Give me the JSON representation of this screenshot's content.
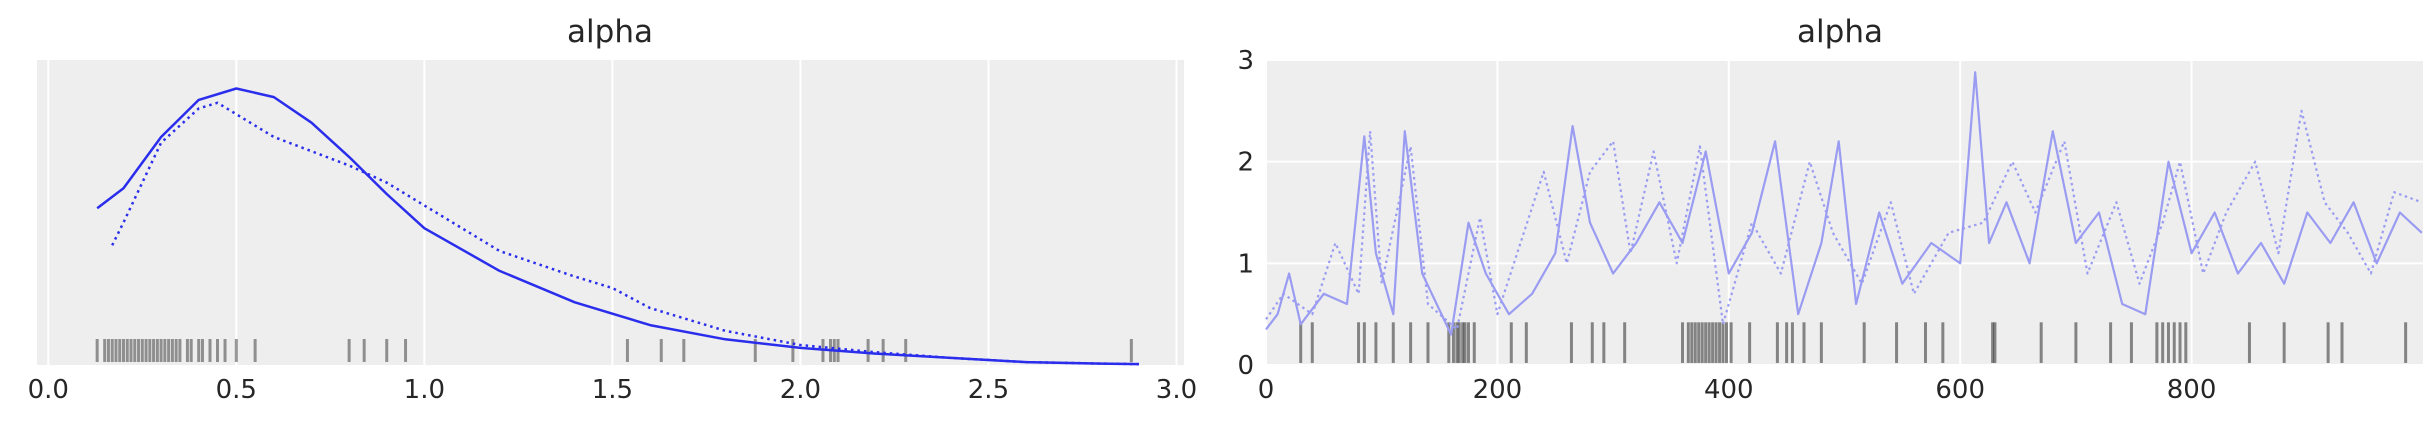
{
  "chart_data": [
    {
      "type": "line",
      "subtype": "kde",
      "title": "alpha",
      "xlabel": "",
      "ylabel": "",
      "xlim": [
        -0.03,
        3.02
      ],
      "xticks": [
        0.0,
        0.5,
        1.0,
        1.5,
        2.0,
        2.5,
        3.0
      ],
      "xtick_labels": [
        "0.0",
        "0.5",
        "1.0",
        "1.5",
        "2.0",
        "2.5",
        "3.0"
      ],
      "yticks_shown": false,
      "grid": true,
      "line_color": "#2a2eec",
      "series": [
        {
          "style": "solid",
          "x": [
            0.13,
            0.2,
            0.3,
            0.4,
            0.5,
            0.6,
            0.7,
            0.8,
            0.9,
            1.0,
            1.2,
            1.4,
            1.6,
            1.8,
            2.0,
            2.2,
            2.4,
            2.6,
            2.8,
            2.9
          ],
          "y": [
            0.55,
            0.62,
            0.8,
            0.93,
            0.97,
            0.94,
            0.85,
            0.73,
            0.6,
            0.48,
            0.33,
            0.22,
            0.14,
            0.09,
            0.06,
            0.04,
            0.025,
            0.01,
            0.005,
            0.003
          ]
        },
        {
          "style": "dotted",
          "x": [
            0.17,
            0.2,
            0.3,
            0.4,
            0.45,
            0.5,
            0.6,
            0.7,
            0.8,
            0.9,
            1.0,
            1.2,
            1.4,
            1.5,
            1.6,
            1.8,
            2.0,
            2.2,
            2.4,
            2.6,
            2.8,
            2.9
          ],
          "y": [
            0.42,
            0.5,
            0.78,
            0.9,
            0.92,
            0.88,
            0.8,
            0.75,
            0.7,
            0.64,
            0.56,
            0.4,
            0.31,
            0.27,
            0.2,
            0.12,
            0.07,
            0.045,
            0.025,
            0.01,
            0.005,
            0.003
          ]
        }
      ],
      "ylim": [
        0,
        1.07
      ],
      "rug": [
        0.13,
        0.15,
        0.16,
        0.17,
        0.18,
        0.19,
        0.2,
        0.21,
        0.22,
        0.23,
        0.24,
        0.25,
        0.26,
        0.27,
        0.28,
        0.29,
        0.3,
        0.31,
        0.32,
        0.33,
        0.34,
        0.35,
        0.37,
        0.38,
        0.4,
        0.41,
        0.43,
        0.45,
        0.47,
        0.5,
        0.55,
        0.8,
        0.84,
        0.9,
        0.95,
        1.54,
        1.63,
        1.69,
        1.88,
        1.98,
        2.06,
        2.08,
        2.09,
        2.1,
        2.18,
        2.22,
        2.28,
        2.88
      ],
      "rug_color": "#000000"
    },
    {
      "type": "line",
      "subtype": "trace",
      "title": "alpha",
      "xlabel": "",
      "ylabel": "",
      "xlim": [
        0,
        1000
      ],
      "ylim": [
        0,
        3
      ],
      "xticks": [
        0,
        200,
        400,
        600,
        800
      ],
      "xtick_labels": [
        "0",
        "200",
        "400",
        "600",
        "800"
      ],
      "yticks": [
        0,
        1,
        2,
        3
      ],
      "ytick_labels": [
        "0",
        "1",
        "2",
        "3"
      ],
      "grid": true,
      "line_color": "#9a9cf2",
      "series": [
        {
          "style": "solid",
          "points": [
            [
              0,
              0.35
            ],
            [
              10,
              0.5
            ],
            [
              20,
              0.9
            ],
            [
              30,
              0.4
            ],
            [
              50,
              0.7
            ],
            [
              70,
              0.6
            ],
            [
              85,
              2.25
            ],
            [
              95,
              1.1
            ],
            [
              110,
              0.5
            ],
            [
              120,
              2.3
            ],
            [
              135,
              0.9
            ],
            [
              160,
              0.3
            ],
            [
              175,
              1.4
            ],
            [
              190,
              0.9
            ],
            [
              210,
              0.5
            ],
            [
              230,
              0.7
            ],
            [
              250,
              1.1
            ],
            [
              265,
              2.35
            ],
            [
              280,
              1.4
            ],
            [
              300,
              0.9
            ],
            [
              320,
              1.2
            ],
            [
              340,
              1.6
            ],
            [
              360,
              1.2
            ],
            [
              380,
              2.1
            ],
            [
              400,
              0.9
            ],
            [
              420,
              1.3
            ],
            [
              440,
              2.2
            ],
            [
              460,
              0.5
            ],
            [
              480,
              1.2
            ],
            [
              495,
              2.2
            ],
            [
              510,
              0.6
            ],
            [
              530,
              1.5
            ],
            [
              550,
              0.8
            ],
            [
              575,
              1.2
            ],
            [
              600,
              1.0
            ],
            [
              613,
              2.88
            ],
            [
              625,
              1.2
            ],
            [
              640,
              1.6
            ],
            [
              660,
              1.0
            ],
            [
              680,
              2.3
            ],
            [
              700,
              1.2
            ],
            [
              720,
              1.5
            ],
            [
              740,
              0.6
            ],
            [
              760,
              0.5
            ],
            [
              780,
              2.0
            ],
            [
              800,
              1.1
            ],
            [
              820,
              1.5
            ],
            [
              840,
              0.9
            ],
            [
              860,
              1.2
            ],
            [
              880,
              0.8
            ],
            [
              900,
              1.5
            ],
            [
              920,
              1.2
            ],
            [
              940,
              1.6
            ],
            [
              960,
              1.0
            ],
            [
              980,
              1.5
            ],
            [
              999,
              1.3
            ]
          ]
        },
        {
          "style": "dotted",
          "points": [
            [
              0,
              0.45
            ],
            [
              15,
              0.7
            ],
            [
              40,
              0.5
            ],
            [
              60,
              1.2
            ],
            [
              80,
              0.7
            ],
            [
              90,
              2.3
            ],
            [
              100,
              0.8
            ],
            [
              125,
              2.15
            ],
            [
              140,
              0.6
            ],
            [
              165,
              0.35
            ],
            [
              185,
              1.45
            ],
            [
              200,
              0.5
            ],
            [
              220,
              1.2
            ],
            [
              240,
              1.9
            ],
            [
              260,
              1.0
            ],
            [
              280,
              1.9
            ],
            [
              300,
              2.2
            ],
            [
              315,
              1.1
            ],
            [
              335,
              2.1
            ],
            [
              355,
              1.0
            ],
            [
              375,
              2.15
            ],
            [
              395,
              0.4
            ],
            [
              420,
              1.4
            ],
            [
              445,
              0.9
            ],
            [
              470,
              2.0
            ],
            [
              490,
              1.3
            ],
            [
              515,
              0.8
            ],
            [
              540,
              1.6
            ],
            [
              560,
              0.7
            ],
            [
              590,
              1.3
            ],
            [
              620,
              1.4
            ],
            [
              645,
              2.0
            ],
            [
              665,
              1.5
            ],
            [
              690,
              2.2
            ],
            [
              710,
              0.9
            ],
            [
              735,
              1.6
            ],
            [
              755,
              0.8
            ],
            [
              775,
              1.4
            ],
            [
              790,
              2.0
            ],
            [
              810,
              0.9
            ],
            [
              830,
              1.5
            ],
            [
              855,
              2.0
            ],
            [
              875,
              1.1
            ],
            [
              895,
              2.5
            ],
            [
              915,
              1.6
            ],
            [
              935,
              1.3
            ],
            [
              955,
              0.9
            ],
            [
              975,
              1.7
            ],
            [
              999,
              1.6
            ]
          ]
        }
      ],
      "divergence_marks": [
        30,
        40,
        80,
        85,
        95,
        110,
        125,
        140,
        158,
        162,
        165,
        167,
        170,
        172,
        175,
        180,
        212,
        225,
        264,
        282,
        292,
        310,
        360,
        365,
        368,
        371,
        374,
        377,
        380,
        383,
        386,
        389,
        392,
        395,
        398,
        402,
        418,
        442,
        450,
        455,
        465,
        480,
        517,
        545,
        570,
        585,
        628,
        630,
        670,
        700,
        730,
        748,
        770,
        775,
        780,
        785,
        790,
        795,
        850,
        880,
        918,
        930,
        985
      ],
      "divergence_color": "#000000"
    }
  ]
}
